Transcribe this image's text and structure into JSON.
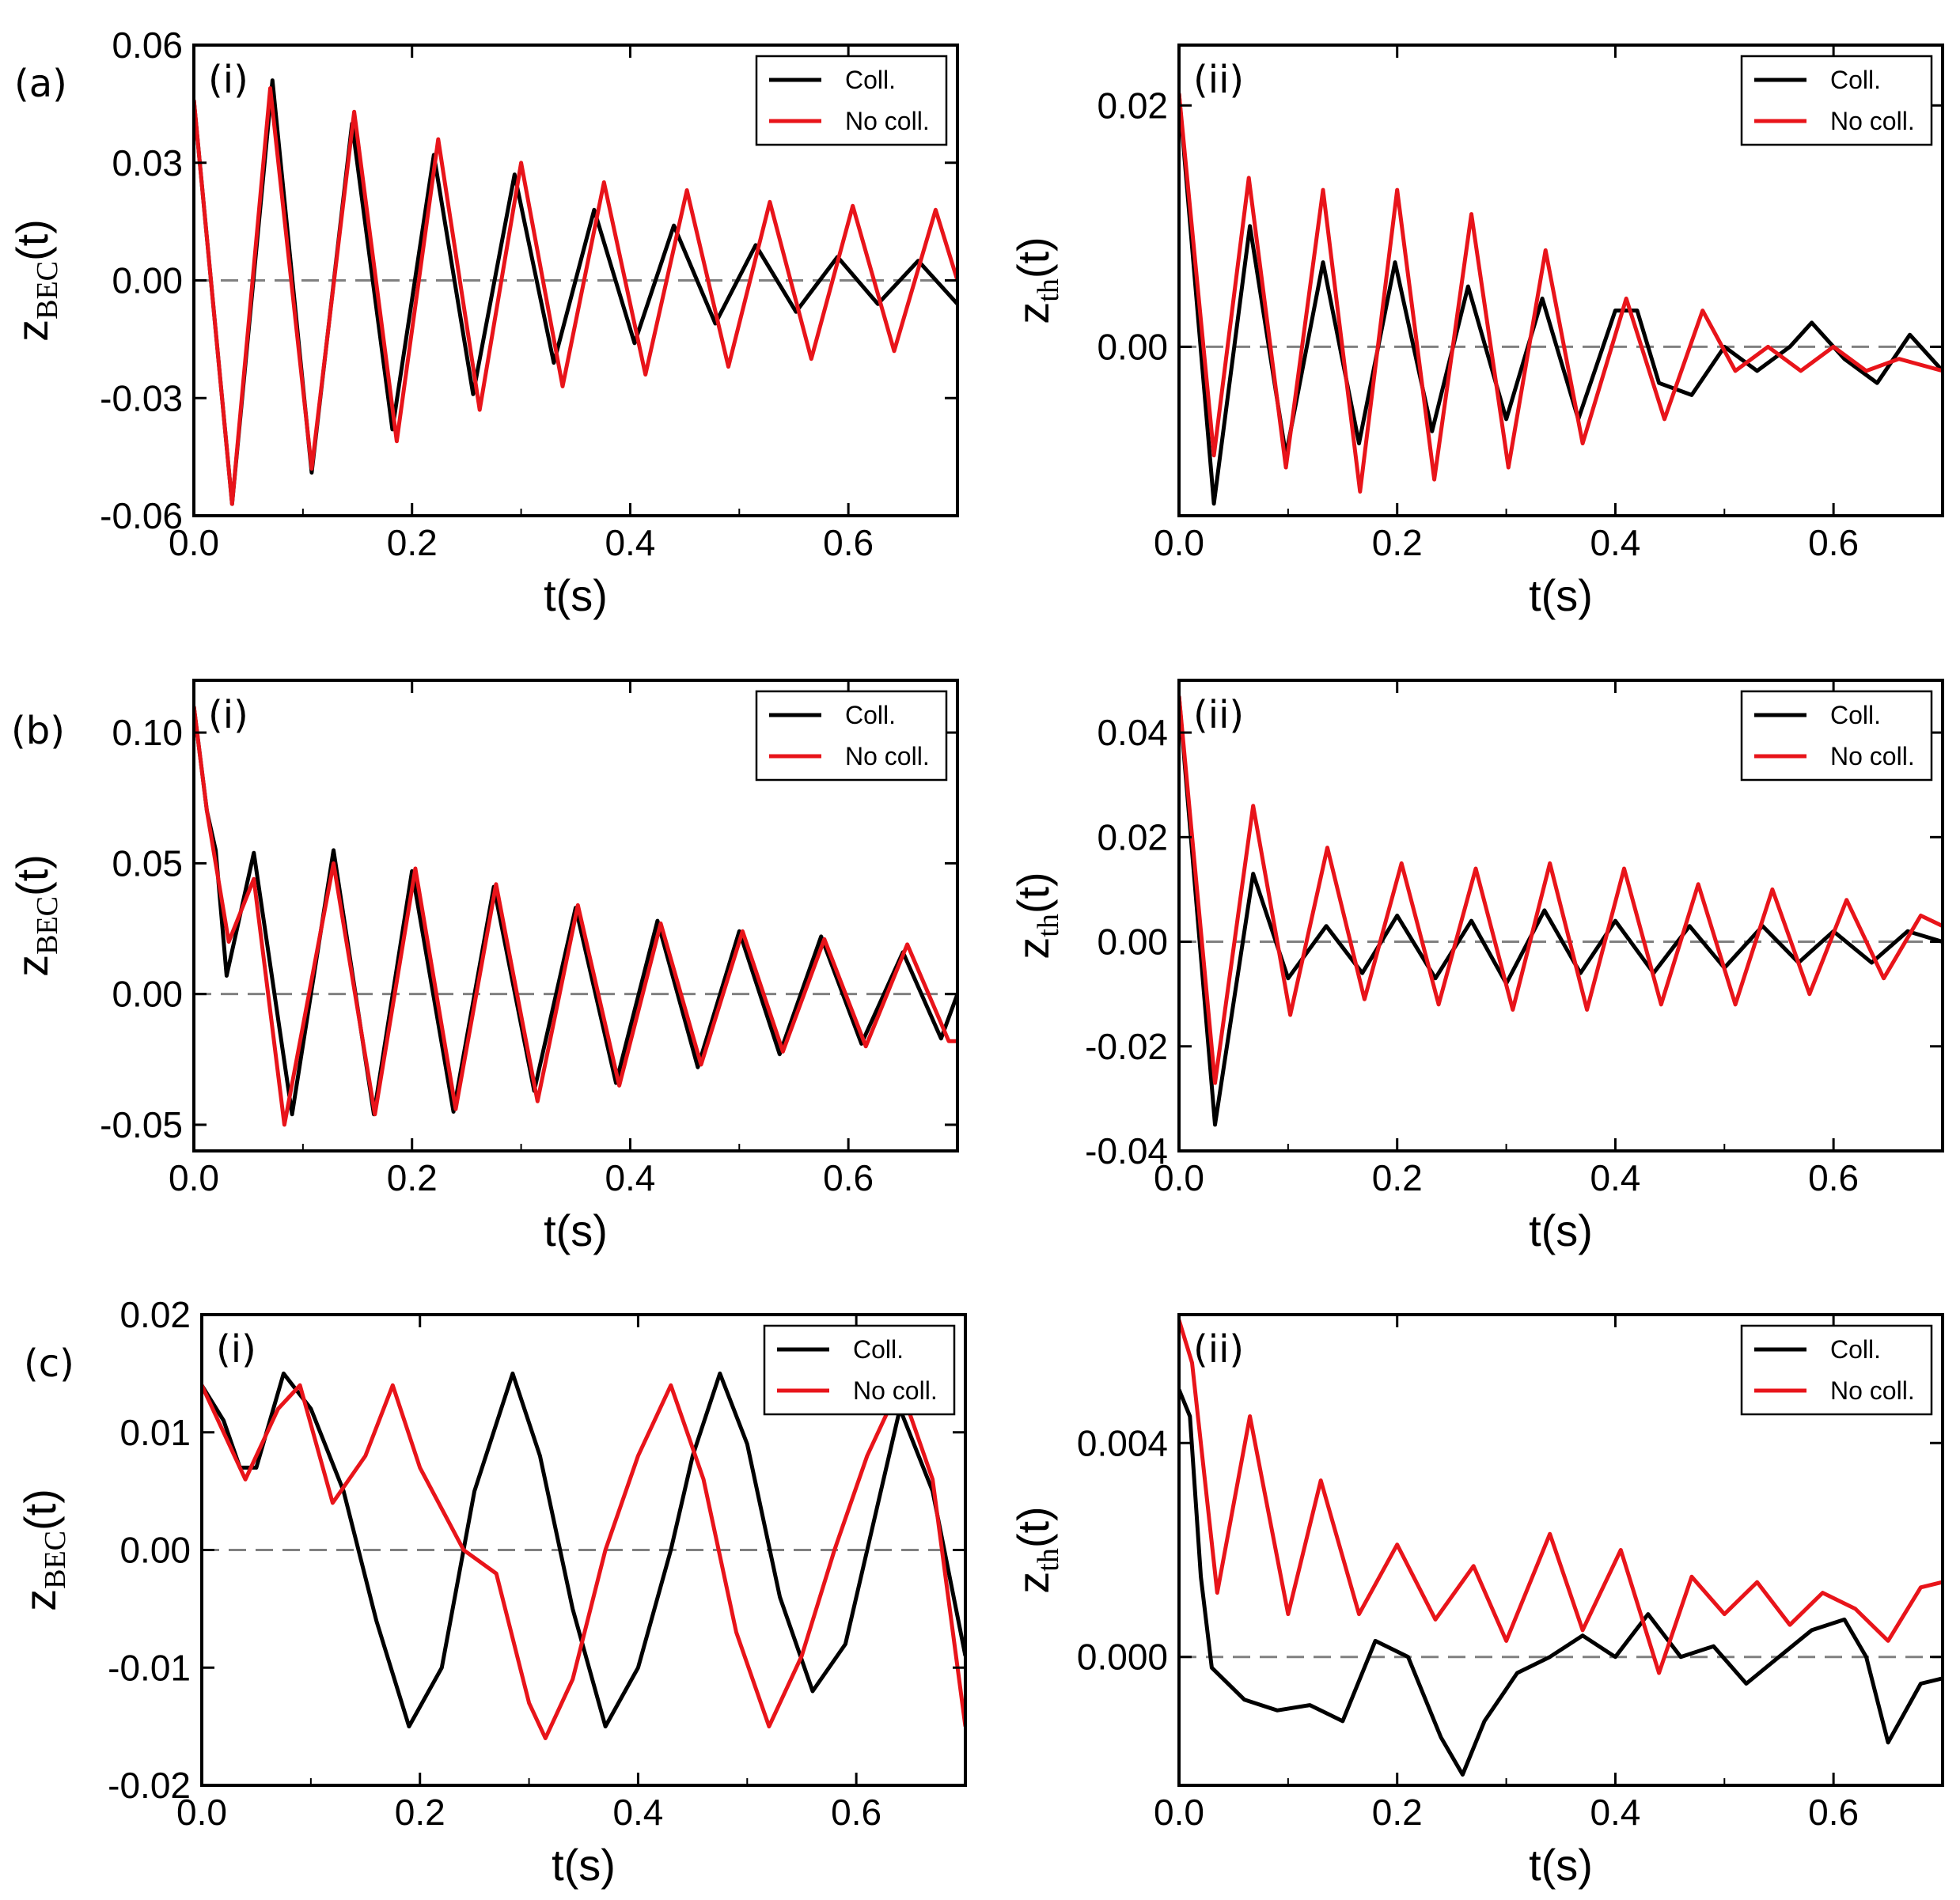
{
  "figure": {
    "row_labels": [
      "(a)",
      "(b)",
      "(c)"
    ],
    "legend_labels": {
      "coll": "Coll.",
      "nocoll": "No coll."
    },
    "colors": {
      "coll": "#000000",
      "nocoll": "#e8141a",
      "zero_line": "#808080"
    },
    "xlabel": "t(s)",
    "ylabel_bec": {
      "main": "z",
      "sub": "BEC",
      "suffix": "(t)"
    },
    "ylabel_th": {
      "main": "z",
      "sub": "th",
      "suffix": "(t)"
    }
  },
  "chart_data": [
    {
      "id": "a-i",
      "type": "line",
      "row": "(a)",
      "panel_label": "(i)",
      "ylabel": "zBEC(t)",
      "xlabel": "t(s)",
      "xlim": [
        0,
        0.7
      ],
      "ylim": [
        -0.06,
        0.06
      ],
      "xticks": [
        "0.0",
        "0.2",
        "0.4",
        "0.6"
      ],
      "xtick_values": [
        0,
        0.2,
        0.4,
        0.6
      ],
      "yticks": [
        "-0.06",
        "-0.03",
        "0.00",
        "0.03",
        "0.06"
      ],
      "ytick_values": [
        -0.06,
        -0.03,
        0,
        0.03,
        0.06
      ],
      "zero_line": true,
      "legend": "top-right",
      "series": [
        {
          "name": "Coll.",
          "color": "#000000",
          "x": [
            0,
            0.035,
            0.072,
            0.108,
            0.145,
            0.182,
            0.22,
            0.256,
            0.294,
            0.33,
            0.367,
            0.404,
            0.44,
            0.478,
            0.515,
            0.552,
            0.59,
            0.627,
            0.664,
            0.7
          ],
          "y": [
            0.046,
            -0.057,
            0.051,
            -0.049,
            0.04,
            -0.038,
            0.032,
            -0.029,
            0.027,
            -0.021,
            0.018,
            -0.016,
            0.014,
            -0.011,
            0.009,
            -0.008,
            0.006,
            -0.006,
            0.005,
            -0.006
          ]
        },
        {
          "name": "No coll.",
          "color": "#e8141a",
          "x": [
            0,
            0.035,
            0.07,
            0.108,
            0.147,
            0.186,
            0.224,
            0.262,
            0.3,
            0.338,
            0.376,
            0.414,
            0.452,
            0.49,
            0.528,
            0.566,
            0.604,
            0.642,
            0.68,
            0.7
          ],
          "y": [
            0.046,
            -0.057,
            0.049,
            -0.048,
            0.043,
            -0.041,
            0.036,
            -0.033,
            0.03,
            -0.027,
            0.025,
            -0.024,
            0.023,
            -0.022,
            0.02,
            -0.02,
            0.019,
            -0.018,
            0.018,
            0.0
          ]
        }
      ]
    },
    {
      "id": "a-ii",
      "type": "line",
      "row": "(a)",
      "panel_label": "(ii)",
      "ylabel": "zth(t)",
      "xlabel": "t(s)",
      "xlim": [
        0,
        0.7
      ],
      "ylim": [
        -0.014,
        0.025
      ],
      "xticks": [
        "0.0",
        "0.2",
        "0.4",
        "0.6"
      ],
      "xtick_values": [
        0,
        0.2,
        0.4,
        0.6
      ],
      "yticks": [
        "0.00",
        "0.02"
      ],
      "ytick_values": [
        0,
        0.02
      ],
      "zero_line": true,
      "legend": "top-right",
      "series": [
        {
          "name": "Coll.",
          "color": "#000000",
          "x": [
            0,
            0.032,
            0.065,
            0.098,
            0.132,
            0.165,
            0.198,
            0.232,
            0.265,
            0.3,
            0.333,
            0.366,
            0.4,
            0.42,
            0.44,
            0.47,
            0.5,
            0.53,
            0.56,
            0.58,
            0.61,
            0.64,
            0.67,
            0.7
          ],
          "y": [
            0.021,
            -0.013,
            0.01,
            -0.009,
            0.007,
            -0.008,
            0.007,
            -0.007,
            0.005,
            -0.006,
            0.004,
            -0.006,
            0.003,
            0.003,
            -0.003,
            -0.004,
            0.0,
            -0.002,
            0.0,
            0.002,
            -0.001,
            -0.003,
            0.001,
            -0.002
          ]
        },
        {
          "name": "No coll.",
          "color": "#e8141a",
          "x": [
            0,
            0.032,
            0.064,
            0.098,
            0.132,
            0.166,
            0.2,
            0.234,
            0.268,
            0.302,
            0.336,
            0.37,
            0.41,
            0.445,
            0.48,
            0.51,
            0.54,
            0.57,
            0.6,
            0.63,
            0.66,
            0.7
          ],
          "y": [
            0.021,
            -0.009,
            0.014,
            -0.01,
            0.013,
            -0.012,
            0.013,
            -0.011,
            0.011,
            -0.01,
            0.008,
            -0.008,
            0.004,
            -0.006,
            0.003,
            -0.002,
            0.0,
            -0.002,
            0.0,
            -0.002,
            -0.001,
            -0.002
          ]
        }
      ]
    },
    {
      "id": "b-i",
      "type": "line",
      "row": "(b)",
      "panel_label": "(i)",
      "ylabel": "zBEC(t)",
      "xlabel": "t(s)",
      "xlim": [
        0,
        0.7
      ],
      "ylim": [
        -0.06,
        0.12
      ],
      "xticks": [
        "0.0",
        "0.2",
        "0.4",
        "0.6"
      ],
      "xtick_values": [
        0,
        0.2,
        0.4,
        0.6
      ],
      "yticks": [
        "-0.05",
        "0.00",
        "0.05",
        "0.10"
      ],
      "ytick_values": [
        -0.05,
        0,
        0.05,
        0.1
      ],
      "zero_line": true,
      "legend": "top-right",
      "series": [
        {
          "name": "Coll.",
          "color": "#000000",
          "x": [
            0,
            0.012,
            0.02,
            0.03,
            0.055,
            0.09,
            0.128,
            0.165,
            0.2,
            0.238,
            0.275,
            0.312,
            0.35,
            0.387,
            0.425,
            0.462,
            0.5,
            0.537,
            0.575,
            0.612,
            0.65,
            0.685,
            0.7
          ],
          "y": [
            0.11,
            0.07,
            0.055,
            0.007,
            0.054,
            -0.046,
            0.055,
            -0.046,
            0.047,
            -0.045,
            0.041,
            -0.037,
            0.033,
            -0.034,
            0.028,
            -0.028,
            0.024,
            -0.023,
            0.022,
            -0.019,
            0.016,
            -0.017,
            0.0
          ]
        },
        {
          "name": "No coll.",
          "color": "#e8141a",
          "x": [
            0,
            0.012,
            0.022,
            0.032,
            0.055,
            0.083,
            0.128,
            0.166,
            0.203,
            0.24,
            0.277,
            0.315,
            0.352,
            0.39,
            0.428,
            0.465,
            0.503,
            0.54,
            0.578,
            0.616,
            0.654,
            0.692,
            0.7
          ],
          "y": [
            0.11,
            0.07,
            0.045,
            0.02,
            0.044,
            -0.05,
            0.05,
            -0.046,
            0.048,
            -0.044,
            0.042,
            -0.041,
            0.034,
            -0.035,
            0.027,
            -0.027,
            0.024,
            -0.022,
            0.021,
            -0.02,
            0.019,
            -0.018,
            -0.018
          ]
        }
      ]
    },
    {
      "id": "b-ii",
      "type": "line",
      "row": "(b)",
      "panel_label": "(ii)",
      "ylabel": "zth(t)",
      "xlabel": "t(s)",
      "xlim": [
        0,
        0.7
      ],
      "ylim": [
        -0.04,
        0.05
      ],
      "xticks": [
        "0.0",
        "0.2",
        "0.4",
        "0.6"
      ],
      "xtick_values": [
        0,
        0.2,
        0.4,
        0.6
      ],
      "yticks": [
        "-0.04",
        "-0.02",
        "0.00",
        "0.02",
        "0.04"
      ],
      "ytick_values": [
        -0.04,
        -0.02,
        0,
        0.02,
        0.04
      ],
      "zero_line": true,
      "legend": "top-right",
      "series": [
        {
          "name": "Coll.",
          "color": "#000000",
          "x": [
            0,
            0.033,
            0.068,
            0.1,
            0.135,
            0.168,
            0.2,
            0.235,
            0.268,
            0.3,
            0.335,
            0.368,
            0.4,
            0.435,
            0.468,
            0.5,
            0.535,
            0.568,
            0.6,
            0.635,
            0.668,
            0.7
          ],
          "y": [
            0.047,
            -0.035,
            0.013,
            -0.007,
            0.003,
            -0.006,
            0.005,
            -0.007,
            0.004,
            -0.008,
            0.006,
            -0.006,
            0.004,
            -0.006,
            0.003,
            -0.005,
            0.003,
            -0.004,
            0.002,
            -0.004,
            0.002,
            0.0
          ]
        },
        {
          "name": "No coll.",
          "color": "#e8141a",
          "x": [
            0,
            0.033,
            0.068,
            0.102,
            0.136,
            0.17,
            0.204,
            0.238,
            0.272,
            0.306,
            0.34,
            0.374,
            0.408,
            0.442,
            0.476,
            0.51,
            0.544,
            0.578,
            0.612,
            0.646,
            0.68,
            0.7
          ],
          "y": [
            0.047,
            -0.027,
            0.026,
            -0.014,
            0.018,
            -0.011,
            0.015,
            -0.012,
            0.014,
            -0.013,
            0.015,
            -0.013,
            0.014,
            -0.012,
            0.011,
            -0.012,
            0.01,
            -0.01,
            0.008,
            -0.007,
            0.005,
            0.003
          ]
        }
      ]
    },
    {
      "id": "c-i",
      "type": "line",
      "row": "(c)",
      "panel_label": "(i)",
      "ylabel": "zBEC(t)",
      "xlabel": "t(s)",
      "xlim": [
        0,
        0.7
      ],
      "ylim": [
        -0.02,
        0.02
      ],
      "xticks": [
        "0.0",
        "0.2",
        "0.4",
        "0.6"
      ],
      "xtick_values": [
        0,
        0.2,
        0.4,
        0.6
      ],
      "yticks": [
        "-0.02",
        "-0.01",
        "0.00",
        "0.01",
        "0.02"
      ],
      "ytick_values": [
        -0.02,
        -0.01,
        0,
        0.01,
        0.02
      ],
      "zero_line": true,
      "legend": "top-right",
      "series": [
        {
          "name": "Coll.",
          "color": "#000000",
          "x": [
            0,
            0.02,
            0.035,
            0.05,
            0.075,
            0.1,
            0.13,
            0.16,
            0.19,
            0.22,
            0.25,
            0.285,
            0.31,
            0.34,
            0.37,
            0.4,
            0.43,
            0.45,
            0.475,
            0.5,
            0.53,
            0.56,
            0.59,
            0.64,
            0.67,
            0.7
          ],
          "y": [
            0.014,
            0.011,
            0.007,
            0.007,
            0.015,
            0.012,
            0.005,
            -0.006,
            -0.015,
            -0.01,
            0.005,
            0.015,
            0.008,
            -0.005,
            -0.015,
            -0.01,
            0.0,
            0.008,
            0.015,
            0.009,
            -0.004,
            -0.012,
            -0.008,
            0.012,
            0.005,
            -0.009
          ]
        },
        {
          "name": "No coll.",
          "color": "#e8141a",
          "x": [
            0,
            0.02,
            0.04,
            0.07,
            0.09,
            0.12,
            0.15,
            0.175,
            0.2,
            0.24,
            0.27,
            0.3,
            0.315,
            0.34,
            0.37,
            0.4,
            0.43,
            0.46,
            0.49,
            0.52,
            0.55,
            0.58,
            0.61,
            0.64,
            0.67,
            0.7
          ],
          "y": [
            0.014,
            0.01,
            0.006,
            0.012,
            0.014,
            0.004,
            0.008,
            0.014,
            0.007,
            0.0,
            -0.002,
            -0.013,
            -0.016,
            -0.011,
            0.0,
            0.008,
            0.014,
            0.006,
            -0.007,
            -0.015,
            -0.009,
            0.0,
            0.008,
            0.014,
            0.006,
            -0.015
          ]
        }
      ]
    },
    {
      "id": "c-ii",
      "type": "line",
      "row": "(c)",
      "panel_label": "(ii)",
      "ylabel": "zth(t)",
      "xlabel": "t(s)",
      "xlim": [
        0,
        0.7
      ],
      "ylim": [
        -0.0024,
        0.0064
      ],
      "xticks": [
        "0.0",
        "0.2",
        "0.4",
        "0.6"
      ],
      "xtick_values": [
        0,
        0.2,
        0.4,
        0.6
      ],
      "yticks": [
        "0.000",
        "0.004"
      ],
      "ytick_values": [
        0,
        0.004
      ],
      "zero_line": true,
      "legend": "top-right",
      "series": [
        {
          "name": "Coll.",
          "color": "#000000",
          "x": [
            0,
            0.01,
            0.02,
            0.03,
            0.06,
            0.09,
            0.12,
            0.15,
            0.18,
            0.21,
            0.24,
            0.26,
            0.28,
            0.31,
            0.34,
            0.37,
            0.4,
            0.43,
            0.46,
            0.49,
            0.52,
            0.55,
            0.58,
            0.61,
            0.63,
            0.65,
            0.68,
            0.7
          ],
          "y": [
            0.005,
            0.0045,
            0.0015,
            -0.0002,
            -0.0008,
            -0.001,
            -0.0009,
            -0.0012,
            0.0003,
            0.0,
            -0.0015,
            -0.0022,
            -0.0012,
            -0.0003,
            0.0,
            0.0004,
            0.0,
            0.0008,
            0.0,
            0.0002,
            -0.0005,
            0.0,
            0.0005,
            0.0007,
            0.0,
            -0.0016,
            -0.0005,
            -0.0004
          ]
        },
        {
          "name": "No coll.",
          "color": "#e8141a",
          "x": [
            0,
            0.012,
            0.035,
            0.065,
            0.1,
            0.13,
            0.165,
            0.2,
            0.235,
            0.27,
            0.3,
            0.34,
            0.37,
            0.405,
            0.44,
            0.47,
            0.5,
            0.53,
            0.56,
            0.59,
            0.62,
            0.65,
            0.68,
            0.7
          ],
          "y": [
            0.0063,
            0.0055,
            0.0012,
            0.0045,
            0.0008,
            0.0033,
            0.0008,
            0.0021,
            0.0007,
            0.0017,
            0.0003,
            0.0023,
            0.0005,
            0.002,
            -0.0003,
            0.0015,
            0.0008,
            0.0014,
            0.0006,
            0.0012,
            0.0009,
            0.0003,
            0.0013,
            0.0014
          ]
        }
      ]
    }
  ]
}
